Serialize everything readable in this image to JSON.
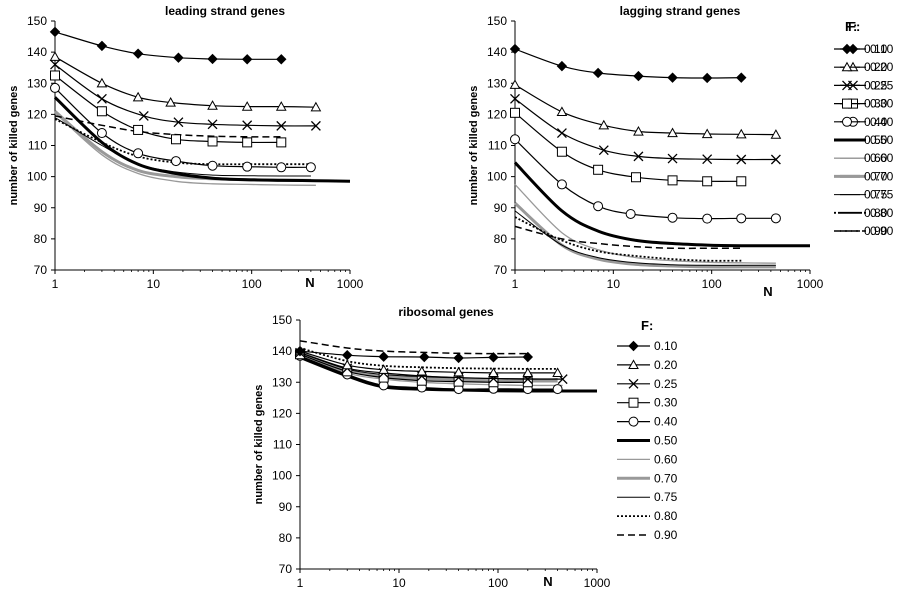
{
  "chart_data": [
    {
      "type": "line",
      "title": "leading strand genes",
      "xlabel": "N",
      "ylabel": "number of killed genes",
      "xscale": "log",
      "xlim": [
        1,
        1000
      ],
      "ylim": [
        70,
        150
      ],
      "xticks": [
        "1",
        "10",
        "100",
        "1000"
      ],
      "yticks": [
        "70",
        "80",
        "90",
        "100",
        "110",
        "120",
        "130",
        "140",
        "150"
      ],
      "grid": false,
      "legend_title": "F:",
      "legend_position": "right",
      "series": [
        {
          "name": "0.10",
          "x": [
            1,
            3,
            7,
            18,
            40,
            90,
            200
          ],
          "values": [
            146.5,
            142,
            139.5,
            138.2,
            137.8,
            137.7,
            137.7
          ]
        },
        {
          "name": "0.20",
          "x": [
            1,
            3,
            7,
            15,
            40,
            90,
            200,
            450
          ],
          "values": [
            138.5,
            130,
            125.5,
            123.8,
            122.8,
            122.5,
            122.5,
            122.3
          ]
        },
        {
          "name": "0.25",
          "x": [
            1,
            3,
            8,
            18,
            40,
            90,
            200,
            450
          ],
          "values": [
            136,
            125,
            119.5,
            117.5,
            116.8,
            116.5,
            116.3,
            116.3
          ]
        },
        {
          "name": "0.30",
          "x": [
            1,
            3,
            7,
            17,
            40,
            90,
            200
          ],
          "values": [
            132.5,
            121,
            115,
            112,
            111.3,
            111,
            111
          ]
        },
        {
          "name": "0.40",
          "x": [
            1,
            3,
            7,
            17,
            40,
            90,
            200,
            400
          ],
          "values": [
            128.5,
            114,
            107.5,
            105,
            103.5,
            103.2,
            103,
            103
          ]
        },
        {
          "name": "0.50",
          "x": [
            1,
            3,
            7,
            17,
            40,
            90,
            200,
            450,
            1000
          ],
          "values": [
            125.5,
            111,
            104,
            101,
            99.5,
            99,
            98.8,
            98.7,
            98.5
          ]
        },
        {
          "name": "0.60",
          "x": [
            1,
            3,
            7,
            17,
            40,
            90,
            200,
            450
          ],
          "values": [
            120.5,
            107,
            101,
            98.5,
            97.7,
            97.5,
            97.3,
            97.2
          ]
        },
        {
          "name": "0.70",
          "x": [
            1,
            3,
            7,
            17,
            40,
            90,
            200,
            400
          ],
          "values": [
            121,
            108,
            102,
            100,
            99.3,
            99,
            98.9,
            98.8
          ]
        },
        {
          "name": "0.75",
          "x": [
            1,
            3,
            7,
            17,
            40,
            90,
            200,
            400
          ],
          "values": [
            119,
            110,
            104,
            101.5,
            100.5,
            100.3,
            100.2,
            100.2
          ]
        },
        {
          "name": "0.80",
          "x": [
            1,
            3,
            7,
            17,
            40,
            90,
            200,
            400
          ],
          "values": [
            118.5,
            111,
            106.5,
            104.5,
            104,
            104,
            104,
            104
          ]
        },
        {
          "name": "0.90",
          "x": [
            1,
            3,
            7,
            17,
            40,
            90,
            200
          ],
          "values": [
            119.5,
            116.5,
            114.5,
            113.5,
            113,
            112.8,
            112.8
          ]
        }
      ]
    },
    {
      "type": "line",
      "title": "lagging strand genes",
      "xlabel": "N",
      "ylabel": "number of killed genes",
      "xscale": "log",
      "xlim": [
        1,
        1000
      ],
      "ylim": [
        70,
        150
      ],
      "xticks": [
        "1",
        "10",
        "100",
        "1000"
      ],
      "yticks": [
        "70",
        "80",
        "90",
        "100",
        "110",
        "120",
        "130",
        "140",
        "150"
      ],
      "grid": false,
      "legend_title": "F:",
      "legend_position": "right",
      "series": [
        {
          "name": "0.10",
          "x": [
            1,
            3,
            7,
            18,
            40,
            90,
            200
          ],
          "values": [
            141,
            135.5,
            133.3,
            132.3,
            131.8,
            131.7,
            131.8
          ]
        },
        {
          "name": "0.20",
          "x": [
            1,
            3,
            8,
            18,
            40,
            90,
            200,
            450
          ],
          "values": [
            129.5,
            120.8,
            116.5,
            114.5,
            114,
            113.7,
            113.6,
            113.5
          ]
        },
        {
          "name": "0.25",
          "x": [
            1,
            3,
            8,
            18,
            40,
            90,
            200,
            450
          ],
          "values": [
            125,
            114,
            108.5,
            106.5,
            105.8,
            105.6,
            105.5,
            105.5
          ]
        },
        {
          "name": "0.30",
          "x": [
            1,
            3,
            7,
            17,
            40,
            90,
            200
          ],
          "values": [
            120.5,
            108,
            102.2,
            99.8,
            98.8,
            98.5,
            98.5
          ]
        },
        {
          "name": "0.40",
          "x": [
            1,
            3,
            7,
            15,
            40,
            90,
            200,
            450
          ],
          "values": [
            112,
            97.5,
            90.5,
            88,
            86.8,
            86.5,
            86.6,
            86.6
          ]
        },
        {
          "name": "0.50",
          "x": [
            1,
            3,
            7,
            17,
            40,
            90,
            200,
            450,
            1000
          ],
          "values": [
            104.5,
            89,
            82.5,
            79.5,
            78.5,
            78,
            77.8,
            77.8,
            77.8
          ]
        },
        {
          "name": "0.60",
          "x": [
            1,
            3,
            7,
            17,
            40,
            90,
            200,
            450
          ],
          "values": [
            97.5,
            82,
            76.5,
            74,
            73,
            72.5,
            72.3,
            72.2
          ]
        },
        {
          "name": "0.70",
          "x": [
            1,
            3,
            7,
            17,
            40,
            90,
            200,
            450
          ],
          "values": [
            91.5,
            78,
            73.5,
            71.8,
            71.3,
            71,
            71,
            71
          ]
        },
        {
          "name": "0.75",
          "x": [
            1,
            3,
            7,
            17,
            40,
            90,
            200,
            450
          ],
          "values": [
            89,
            78,
            74,
            72.3,
            71.7,
            71.5,
            71.5,
            71.5
          ]
        },
        {
          "name": "0.80",
          "x": [
            1,
            3,
            7,
            17,
            40,
            90,
            200
          ],
          "values": [
            87,
            79.5,
            76,
            74.5,
            73.5,
            73,
            73
          ]
        },
        {
          "name": "0.90",
          "x": [
            1,
            3,
            7,
            17,
            40,
            90,
            200
          ],
          "values": [
            84,
            80,
            78.5,
            77.5,
            77,
            77,
            77
          ]
        }
      ]
    },
    {
      "type": "line",
      "title": "ribosomal genes",
      "xlabel": "N",
      "ylabel": "number of killed genes",
      "xscale": "log",
      "xlim": [
        1,
        1000
      ],
      "ylim": [
        70,
        150
      ],
      "xticks": [
        "1",
        "10",
        "100",
        "1000"
      ],
      "yticks": [
        "70",
        "80",
        "90",
        "100",
        "110",
        "120",
        "130",
        "140",
        "150"
      ],
      "grid": false,
      "legend_title": "F:",
      "legend_position": "right",
      "series": [
        {
          "name": "0.10",
          "x": [
            1,
            3,
            7,
            18,
            40,
            90,
            200
          ],
          "values": [
            140,
            138.7,
            138.2,
            138.1,
            137.8,
            138,
            138.1
          ]
        },
        {
          "name": "0.20",
          "x": [
            1,
            3,
            7,
            17,
            40,
            90,
            200,
            400
          ],
          "values": [
            140,
            135.5,
            134,
            133.5,
            133.2,
            133,
            133,
            133
          ]
        },
        {
          "name": "0.25",
          "x": [
            1,
            3,
            7,
            17,
            40,
            90,
            200,
            450
          ],
          "values": [
            139.5,
            134.5,
            133,
            132,
            131.5,
            131.2,
            131,
            131
          ]
        },
        {
          "name": "0.30",
          "x": [
            1,
            3,
            7,
            17,
            40,
            90,
            200
          ],
          "values": [
            139,
            133.5,
            131.5,
            130.5,
            130.2,
            130,
            130
          ]
        },
        {
          "name": "0.40",
          "x": [
            1,
            3,
            7,
            17,
            40,
            90,
            200,
            400
          ],
          "values": [
            138.5,
            132.5,
            129,
            128.3,
            127.8,
            127.9,
            127.8,
            127.8
          ]
        },
        {
          "name": "0.50",
          "x": [
            1,
            3,
            7,
            17,
            40,
            90,
            200,
            450,
            1000
          ],
          "values": [
            138,
            132,
            128.5,
            127.8,
            127.5,
            127.3,
            127.2,
            127.2,
            127.2
          ]
        },
        {
          "name": "0.60",
          "x": [
            1,
            3,
            7,
            17,
            40,
            90,
            200,
            450
          ],
          "values": [
            139,
            133,
            131,
            130,
            129.5,
            129.2,
            129,
            129
          ]
        },
        {
          "name": "0.70",
          "x": [
            1,
            3,
            7,
            17,
            40,
            90,
            200,
            400
          ],
          "values": [
            139.5,
            134,
            132,
            131.2,
            130.8,
            130.5,
            130.4,
            130.4
          ]
        },
        {
          "name": "0.75",
          "x": [
            1,
            3,
            7,
            17,
            40,
            90,
            200,
            400
          ],
          "values": [
            139.5,
            134.2,
            132.5,
            131.8,
            131.4,
            131.2,
            131.1,
            131.1
          ]
        },
        {
          "name": "0.80",
          "x": [
            1,
            3,
            7,
            17,
            40,
            90,
            200,
            400
          ],
          "values": [
            141,
            136.8,
            135.3,
            134.8,
            134.5,
            134.4,
            134.3,
            134.3
          ]
        },
        {
          "name": "0.90",
          "x": [
            1,
            3,
            7,
            17,
            40,
            90,
            200
          ],
          "values": [
            143.3,
            141,
            140,
            139.6,
            139.3,
            139.2,
            139.2
          ]
        }
      ]
    }
  ]
}
